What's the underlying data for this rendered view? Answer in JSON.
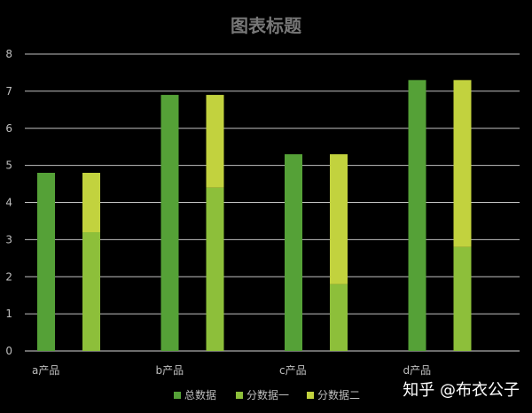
{
  "chart_data": {
    "type": "bar",
    "title": "图表标题",
    "categories": [
      "a产品",
      "b产品",
      "c产品",
      "d产品"
    ],
    "ylim": [
      0,
      8
    ],
    "yticks": [
      0,
      1,
      2,
      3,
      4,
      5,
      6,
      7,
      8
    ],
    "grid": true,
    "legend_position": "bottom",
    "series": [
      {
        "name": "总数据",
        "values": [
          4.8,
          6.9,
          5.3,
          7.3
        ],
        "color": "#55a137",
        "stack": "total"
      },
      {
        "name": "分数据一",
        "values": [
          3.2,
          4.4,
          1.8,
          2.8
        ],
        "color": "#8dbf3a",
        "stack": "split"
      },
      {
        "name": "分数据二",
        "values": [
          1.6,
          2.5,
          3.5,
          4.5
        ],
        "color": "#c2d23e",
        "stack": "split"
      }
    ]
  },
  "watermark": "知乎 @布衣公子"
}
